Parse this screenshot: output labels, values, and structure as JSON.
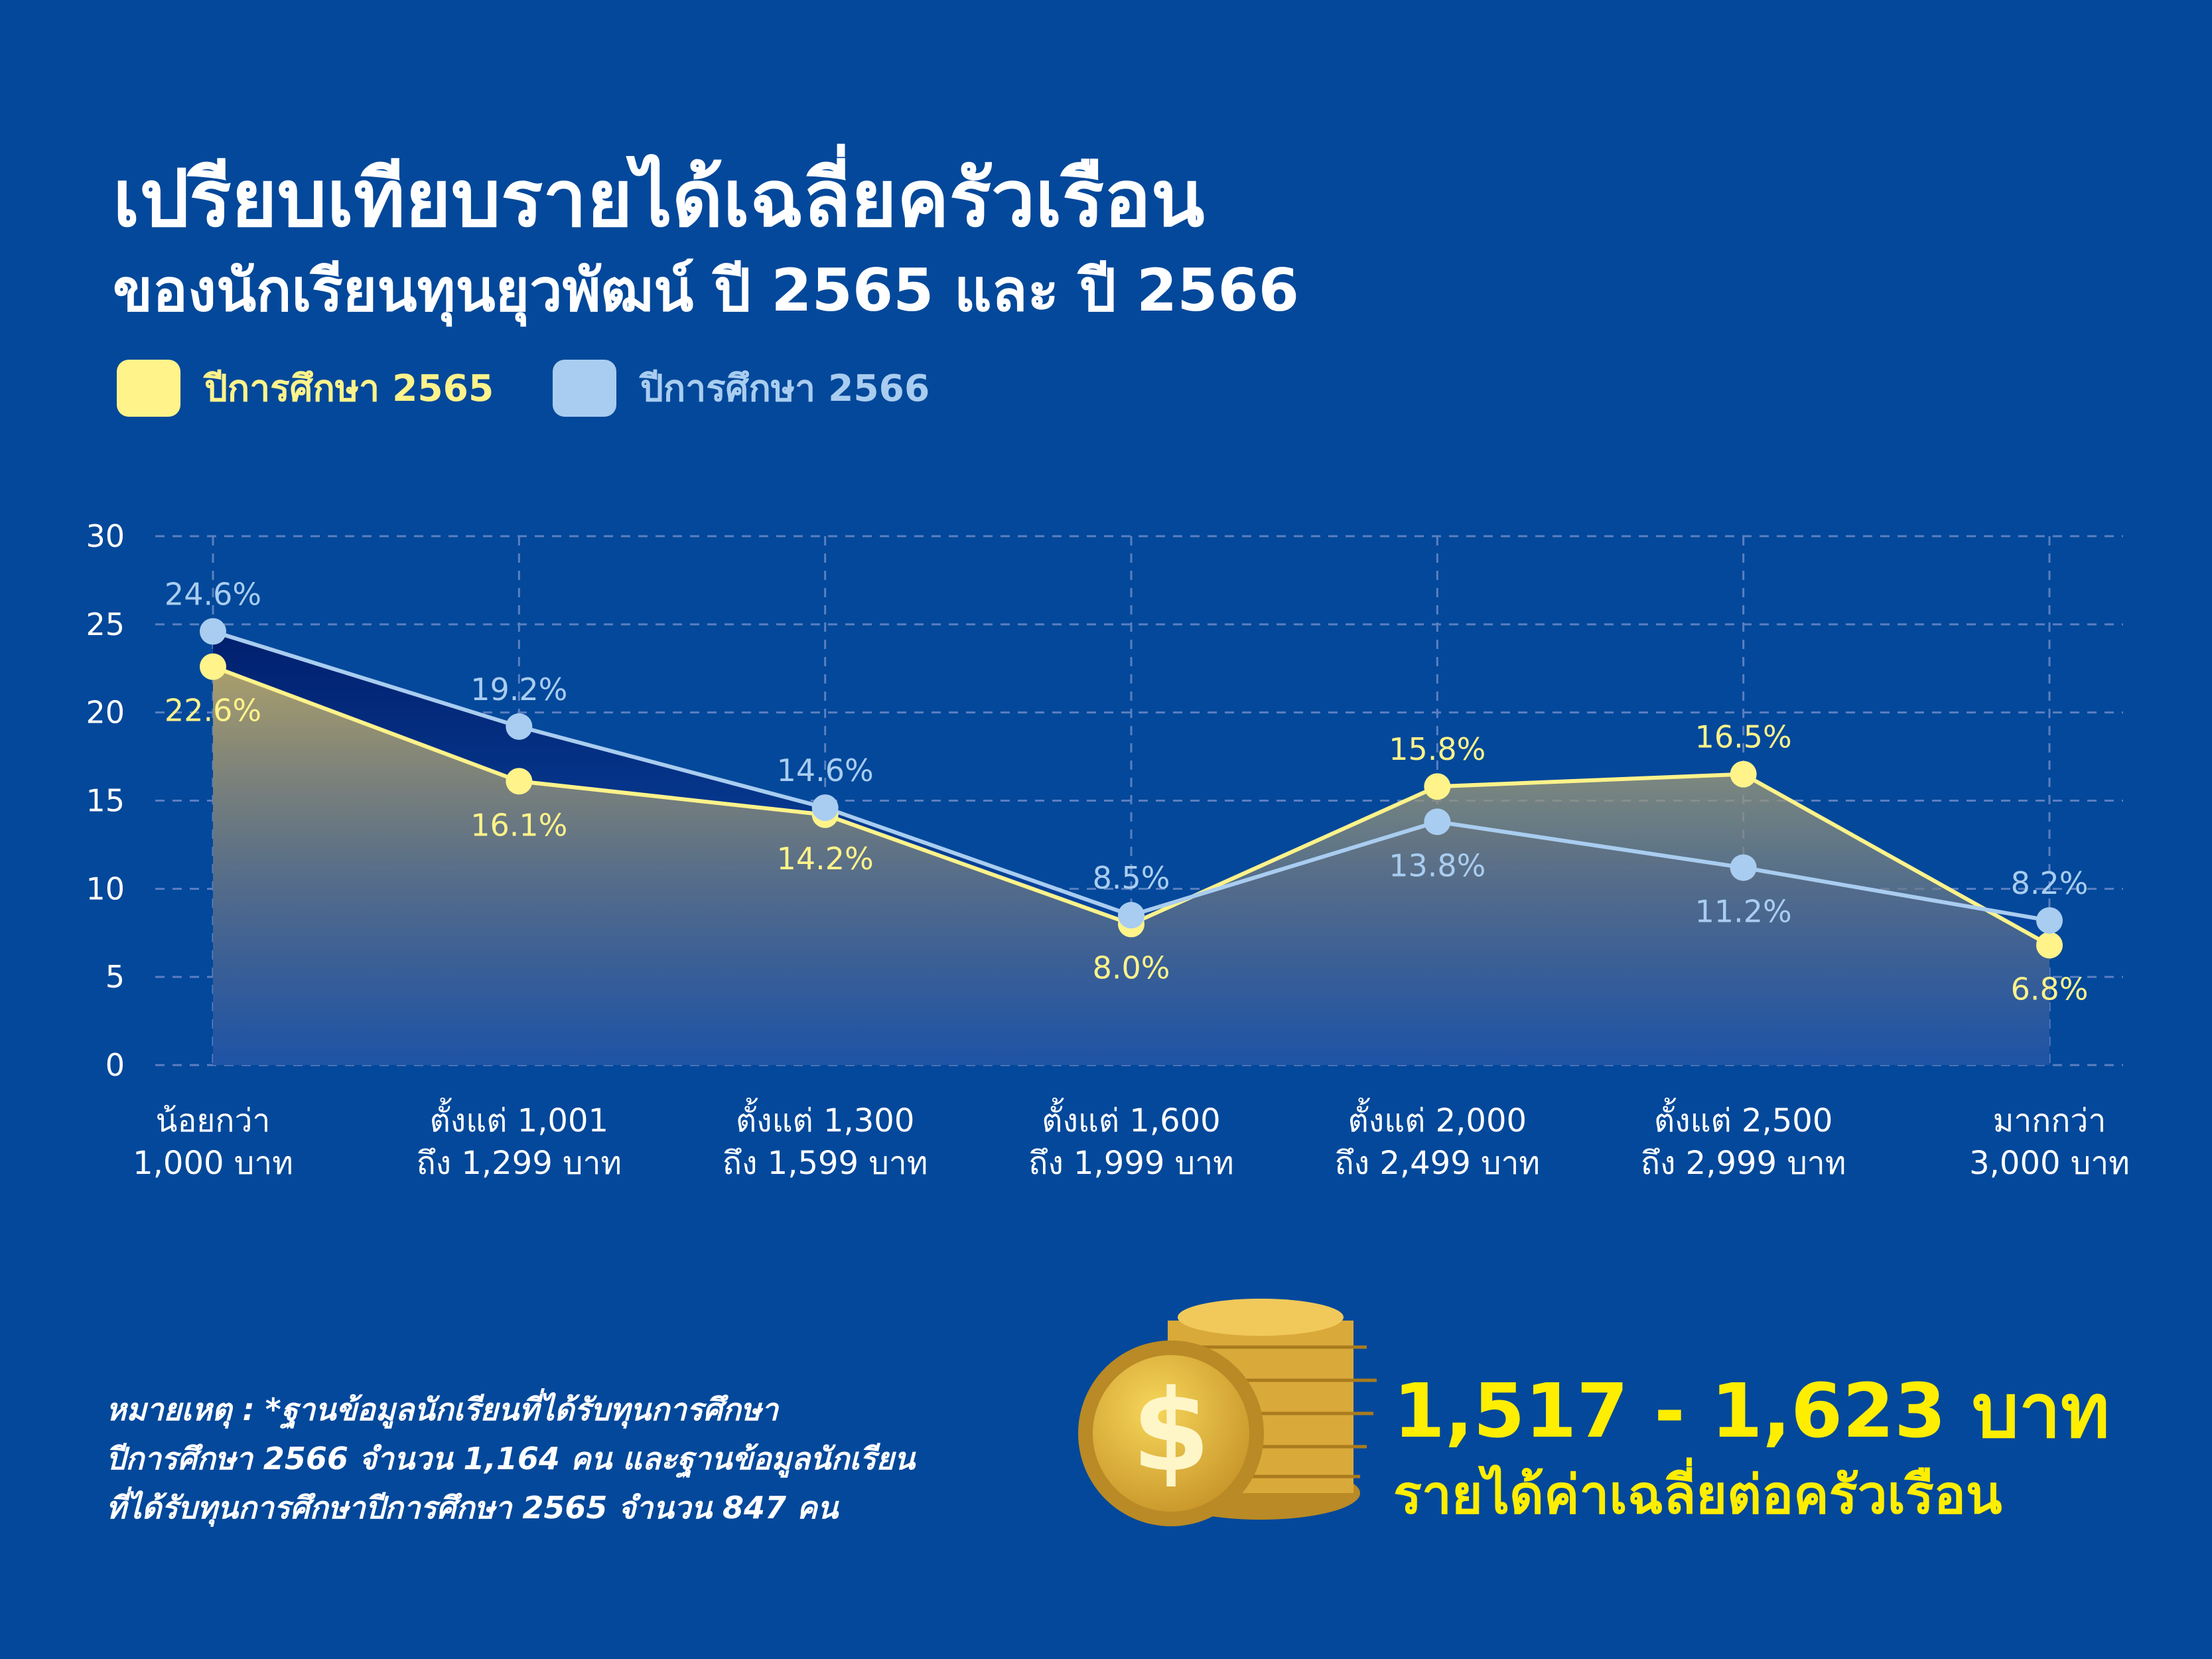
{
  "chart_data": {
    "type": "line",
    "title": "เปรียบเทียบรายได้เฉลี่ยครัวเรือน",
    "subtitle": "ของนักเรียนทุนยุวพัฒน์ ปี 2565 และ ปี 2566",
    "categories": [
      [
        "น้อยกว่า",
        "1,000 บาท"
      ],
      [
        "ตั้งแต่ 1,001",
        "ถึง 1,299 บาท"
      ],
      [
        "ตั้งแต่ 1,300",
        "ถึง 1,599 บาท"
      ],
      [
        "ตั้งแต่ 1,600",
        "ถึง 1,999 บาท"
      ],
      [
        "ตั้งแต่ 2,000",
        "ถึง 2,499 บาท"
      ],
      [
        "ตั้งแต่ 2,500",
        "ถึง 2,999 บาท"
      ],
      [
        "มากกว่า",
        "3,000 บาท"
      ]
    ],
    "series": [
      {
        "name": "ปีการศึกษา 2565",
        "color": "#fff38a",
        "values": [
          22.6,
          16.1,
          14.2,
          8.0,
          15.8,
          16.5,
          6.8
        ],
        "value_labels": [
          "22.6%",
          "16.1%",
          "14.2%",
          "8.0%",
          "15.8%",
          "16.5%",
          "6.8%"
        ]
      },
      {
        "name": "ปีการศึกษา 2566",
        "color": "#a9cdf0",
        "values": [
          24.6,
          19.2,
          14.6,
          8.5,
          13.8,
          11.2,
          8.2
        ],
        "value_labels": [
          "24.6%",
          "19.2%",
          "14.6%",
          "8.5%",
          "13.8%",
          "11.2%",
          "8.2%"
        ]
      }
    ],
    "ylim": [
      0,
      30
    ],
    "yticks": [
      0,
      5,
      10,
      15,
      20,
      25,
      30
    ],
    "grid": true,
    "legend": "top-left"
  },
  "note": [
    "หมายเหตุ : *ฐานข้อมูลนักเรียนที่ได้รับทุนการศึกษา",
    "ปีการศึกษา 2566 จำนวน 1,164 คน และฐานข้อมูลนักเรียน",
    "ที่ได้รับทุนการศึกษาปีการศึกษา 2565 จำนวน 847 คน"
  ],
  "highlight": {
    "value": "1,517 - 1,623 บาท",
    "caption": "รายได้ค่าเฉลี่ยต่อครัวเรือน"
  }
}
